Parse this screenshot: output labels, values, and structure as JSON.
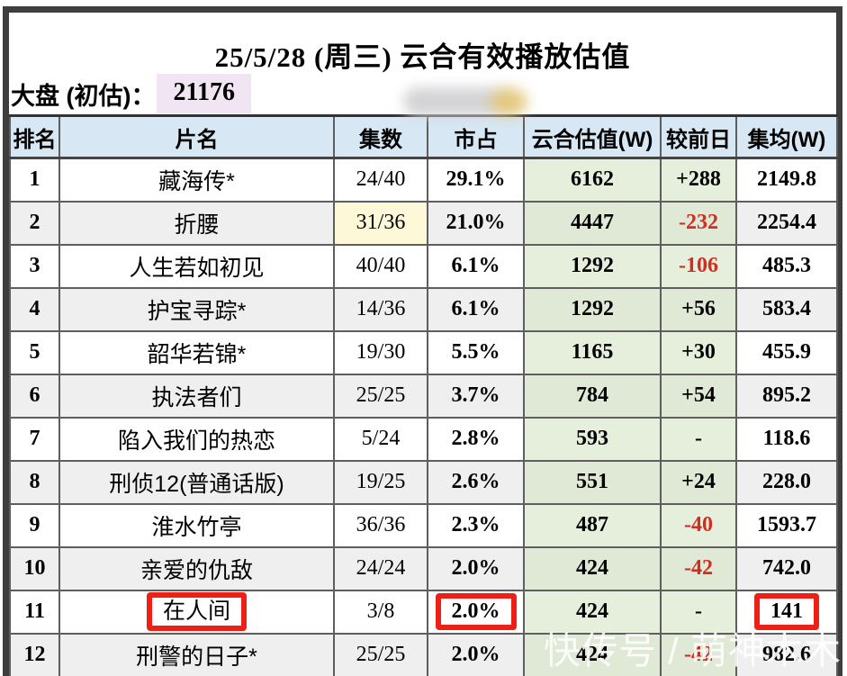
{
  "header": {
    "title": "25/5/28 (周三) 云合有效播放估值",
    "market_label": "大盘 (初估)：",
    "market_value": "21176"
  },
  "watermark": {
    "text": "快传号 / 萌神木木"
  },
  "colors": {
    "header_bg": "#d7e7f4",
    "green_column_bg": "#e5efdc",
    "alt_row_bg": "#efefef",
    "yellow_highlight_bg": "#fdf8d8",
    "lavender_highlight_bg": "#f2e5f3",
    "negative_text": "#cf2e21",
    "red_box_border": "#ee2016",
    "frame_border": "#3e3e3e"
  },
  "chart_data": {
    "type": "table",
    "title": "25/5/28 (周三) 云合有效播放估值",
    "market_total_estimate": "21176",
    "columns": [
      "排名",
      "片名",
      "集数",
      "市占",
      "云合估值(W)",
      "较前日",
      "集均(W)"
    ],
    "rows": [
      {
        "rank": "1",
        "title": "藏海传*",
        "episodes": "24/40",
        "share": "29.1%",
        "estimate": "6162",
        "delta": "+288",
        "avg": "2149.8",
        "delta_negative": false,
        "episodes_highlight": false,
        "boxed": []
      },
      {
        "rank": "2",
        "title": "折腰",
        "episodes": "31/36",
        "share": "21.0%",
        "estimate": "4447",
        "delta": "-232",
        "avg": "2254.4",
        "delta_negative": true,
        "episodes_highlight": true,
        "boxed": []
      },
      {
        "rank": "3",
        "title": "人生若如初见",
        "episodes": "40/40",
        "share": "6.1%",
        "estimate": "1292",
        "delta": "-106",
        "avg": "485.3",
        "delta_negative": true,
        "episodes_highlight": false,
        "boxed": []
      },
      {
        "rank": "4",
        "title": "护宝寻踪*",
        "episodes": "14/36",
        "share": "6.1%",
        "estimate": "1292",
        "delta": "+56",
        "avg": "583.4",
        "delta_negative": false,
        "episodes_highlight": false,
        "boxed": []
      },
      {
        "rank": "5",
        "title": "韶华若锦*",
        "episodes": "19/30",
        "share": "5.5%",
        "estimate": "1165",
        "delta": "+30",
        "avg": "455.9",
        "delta_negative": false,
        "episodes_highlight": false,
        "boxed": []
      },
      {
        "rank": "6",
        "title": "执法者们",
        "episodes": "25/25",
        "share": "3.7%",
        "estimate": "784",
        "delta": "+54",
        "avg": "895.2",
        "delta_negative": false,
        "episodes_highlight": false,
        "boxed": []
      },
      {
        "rank": "7",
        "title": "陷入我们的热恋",
        "episodes": "5/24",
        "share": "2.8%",
        "estimate": "593",
        "delta": "-",
        "avg": "118.6",
        "delta_negative": false,
        "episodes_highlight": false,
        "boxed": []
      },
      {
        "rank": "8",
        "title": "刑侦12(普通话版)",
        "episodes": "19/25",
        "share": "2.6%",
        "estimate": "551",
        "delta": "+24",
        "avg": "228.0",
        "delta_negative": false,
        "episodes_highlight": false,
        "boxed": []
      },
      {
        "rank": "9",
        "title": "淮水竹亭",
        "episodes": "36/36",
        "share": "2.3%",
        "estimate": "487",
        "delta": "-40",
        "avg": "1593.7",
        "delta_negative": true,
        "episodes_highlight": false,
        "boxed": []
      },
      {
        "rank": "10",
        "title": "亲爱的仇敌",
        "episodes": "24/24",
        "share": "2.0%",
        "estimate": "424",
        "delta": "-42",
        "avg": "742.0",
        "delta_negative": true,
        "episodes_highlight": false,
        "boxed": []
      },
      {
        "rank": "11",
        "title": "在人间",
        "episodes": "3/8",
        "share": "2.0%",
        "estimate": "424",
        "delta": "-",
        "avg": "141",
        "delta_negative": false,
        "episodes_highlight": false,
        "boxed": [
          "title",
          "share",
          "avg"
        ]
      },
      {
        "rank": "12",
        "title": "刑警的日子*",
        "episodes": "25/25",
        "share": "2.0%",
        "estimate": "424",
        "delta": "-42",
        "avg": "982.6",
        "delta_negative": true,
        "episodes_highlight": false,
        "boxed": []
      }
    ]
  }
}
